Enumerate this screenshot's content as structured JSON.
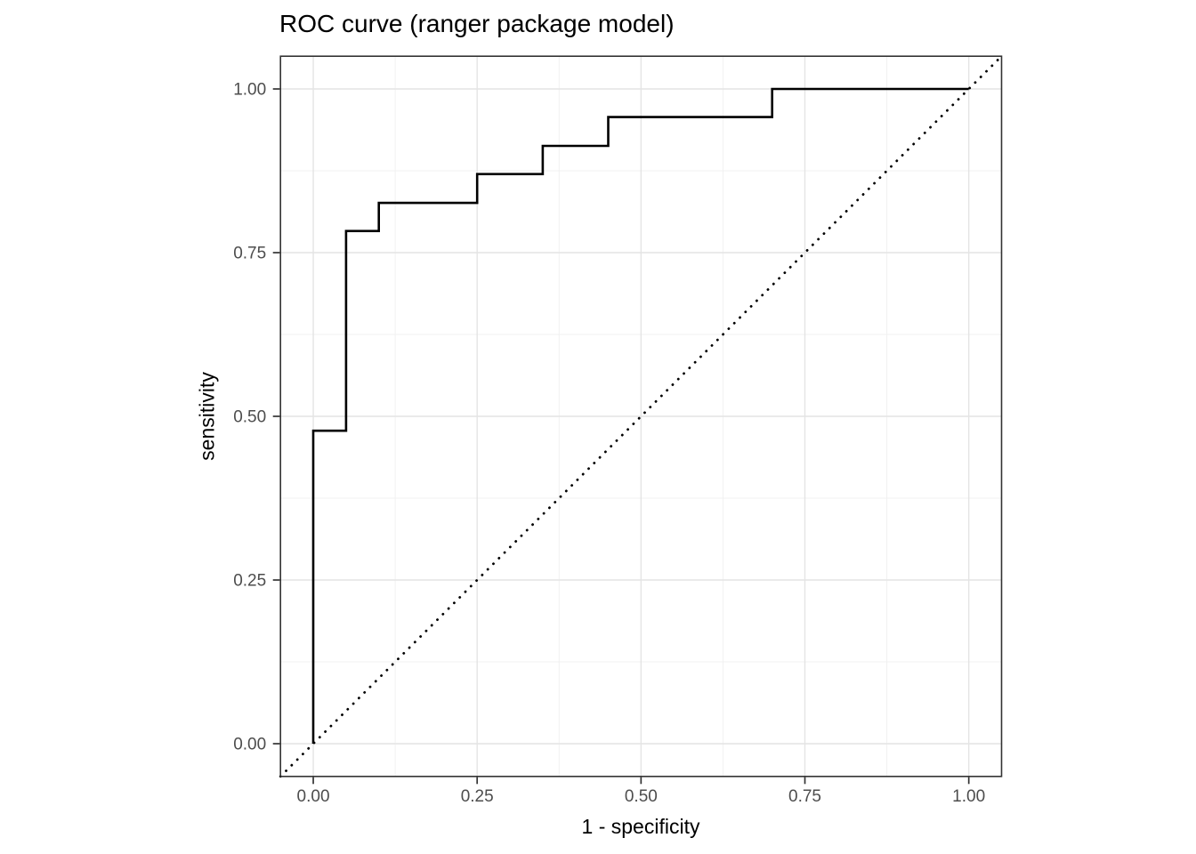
{
  "chart_data": {
    "type": "line",
    "subtype": "roc-step-curve",
    "title": "ROC curve (ranger package model)",
    "xlabel": "1 - specificity",
    "ylabel": "sensitivity",
    "xlim": [
      -0.05,
      1.05
    ],
    "ylim": [
      -0.05,
      1.05
    ],
    "x_ticks": [
      0,
      0.25,
      0.5,
      0.75,
      1
    ],
    "x_tick_labels": [
      "0.00",
      "0.25",
      "0.50",
      "0.75",
      "1.00"
    ],
    "y_ticks": [
      0,
      0.25,
      0.5,
      0.75,
      1
    ],
    "y_tick_labels": [
      "0.00",
      "0.25",
      "0.50",
      "0.75",
      "1.00"
    ],
    "x_minor_ticks": [
      0.125,
      0.375,
      0.625,
      0.875
    ],
    "y_minor_ticks": [
      0.125,
      0.375,
      0.625,
      0.875
    ],
    "grid": "major and minor gridlines on, white panel with border (theme_bw style)",
    "legend": "none",
    "colors": {
      "curve": "#000000",
      "diagonal": "#000000",
      "grid_major": "#e4e4e4",
      "grid_minor": "#f0f0f0",
      "panel_border": "#333333",
      "tick_mark": "#333333",
      "tick_label": "#4d4d4d",
      "axis_title": "#000000",
      "background": "#ffffff"
    },
    "series": [
      {
        "name": "roc-curve",
        "style": "solid-step",
        "color": "#000000",
        "points": [
          [
            0.0,
            0.0
          ],
          [
            0.0,
            0.478
          ],
          [
            0.05,
            0.478
          ],
          [
            0.05,
            0.783
          ],
          [
            0.1,
            0.783
          ],
          [
            0.1,
            0.826
          ],
          [
            0.25,
            0.826
          ],
          [
            0.25,
            0.87
          ],
          [
            0.35,
            0.87
          ],
          [
            0.35,
            0.913
          ],
          [
            0.45,
            0.913
          ],
          [
            0.45,
            0.957
          ],
          [
            0.7,
            0.957
          ],
          [
            0.7,
            1.0
          ],
          [
            1.0,
            1.0
          ]
        ]
      },
      {
        "name": "chance-diagonal",
        "style": "dotted",
        "color": "#000000",
        "points": [
          [
            -0.05,
            -0.05
          ],
          [
            1.05,
            1.05
          ]
        ]
      }
    ]
  }
}
